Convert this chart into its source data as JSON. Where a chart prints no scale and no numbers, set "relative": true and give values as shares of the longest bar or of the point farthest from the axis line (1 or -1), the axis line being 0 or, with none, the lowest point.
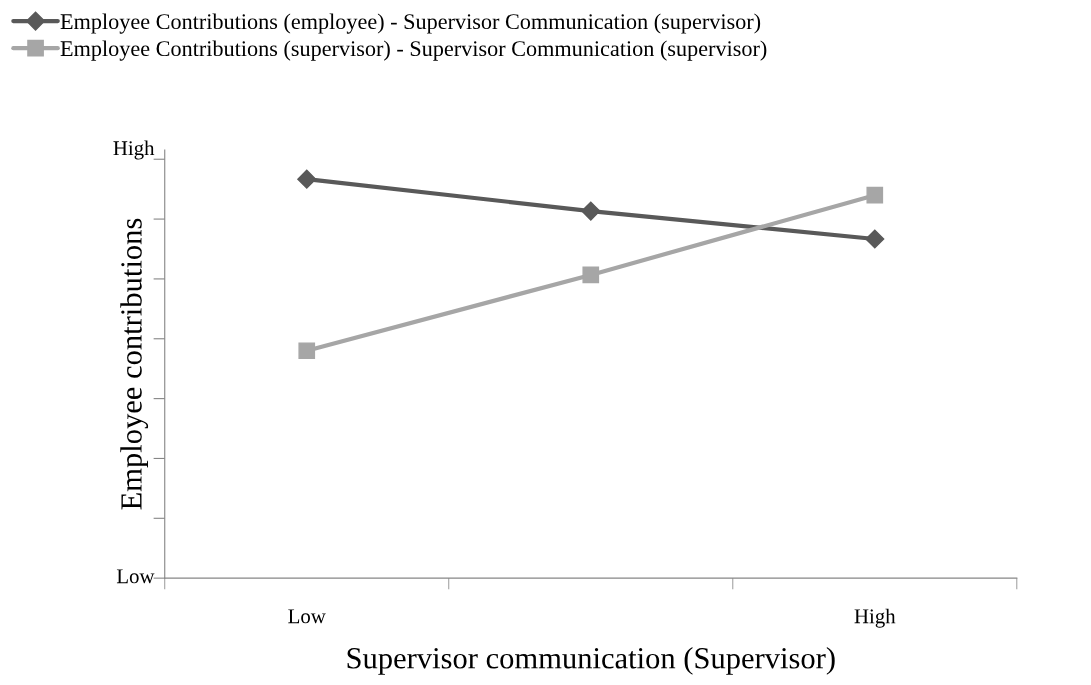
{
  "chart_data": {
    "type": "line",
    "xlabel": "Supervisor communication (Supervisor)",
    "ylabel": "Employee contributions",
    "categories": [
      "Low",
      null,
      "High"
    ],
    "series": [
      {
        "name": "Employee Contributions (employee) - Supervisor Communication (supervisor)",
        "color": "#595959",
        "marker": "diamond",
        "values": [
          1,
          0.92,
          0.85
        ]
      },
      {
        "name": "Employee Contributions (supervisor) - Supervisor Communication (supervisor)",
        "color": "#a6a6a6",
        "marker": "square",
        "values": [
          0.57,
          0.76,
          0.96
        ]
      }
    ],
    "relative": true,
    "annotations": [
      "High",
      "Low"
    ],
    "grid": false,
    "legend": "top left",
    "line_style": "solid"
  }
}
